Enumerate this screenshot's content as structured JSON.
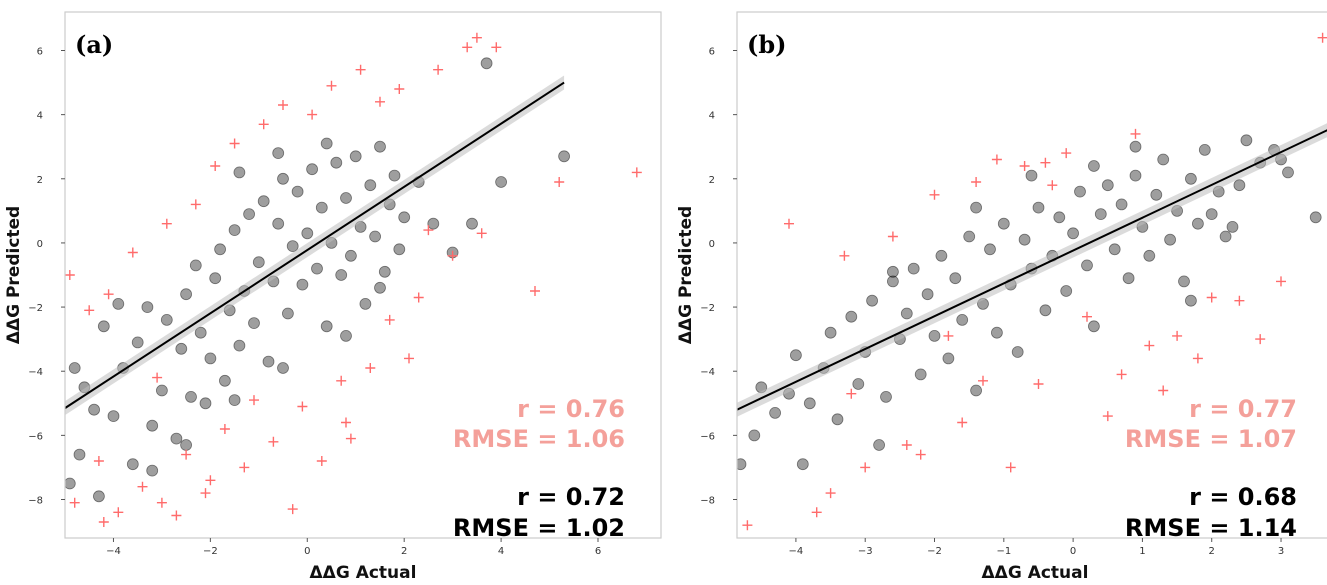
{
  "colors": {
    "black_series": "#000000",
    "red_series": "#ff6b6b",
    "stat_red": "#f4a09a",
    "ci_band": "#bdbdbd"
  },
  "chart_data": [
    {
      "type": "scatter",
      "panel_label": "(a)",
      "xlabel": "ΔΔG Actual",
      "ylabel": "ΔΔG Predicted",
      "xlim": [
        -5,
        7.3
      ],
      "ylim": [
        -9.2,
        7.2
      ],
      "xticks": [
        -4,
        -2,
        0,
        2,
        4,
        6
      ],
      "yticks": [
        -8,
        -6,
        -4,
        -2,
        0,
        2,
        4,
        6
      ],
      "grid": false,
      "fit_line": {
        "x": [
          -5,
          5.3
        ],
        "y": [
          -5.15,
          5.0
        ]
      },
      "stats_red": {
        "r": "r = 0.76",
        "rmse": "RMSE = 1.06"
      },
      "stats_black": {
        "r": "r = 0.72",
        "rmse": "RMSE = 1.02"
      },
      "series": [
        {
          "marker": "circle",
          "points": [
            [
              -4.9,
              -7.5
            ],
            [
              -4.7,
              -6.6
            ],
            [
              -4.6,
              -4.5
            ],
            [
              -4.4,
              -5.2
            ],
            [
              -4.2,
              -2.6
            ],
            [
              -4.0,
              -5.4
            ],
            [
              -3.8,
              -3.9
            ],
            [
              -3.6,
              -6.9
            ],
            [
              -3.5,
              -3.1
            ],
            [
              -3.3,
              -2.0
            ],
            [
              -3.2,
              -5.7
            ],
            [
              -3.0,
              -4.6
            ],
            [
              -2.9,
              -2.4
            ],
            [
              -2.7,
              -6.1
            ],
            [
              -2.6,
              -3.3
            ],
            [
              -2.5,
              -1.6
            ],
            [
              -2.4,
              -4.8
            ],
            [
              -2.3,
              -0.7
            ],
            [
              -2.2,
              -2.8
            ],
            [
              -2.1,
              -5.0
            ],
            [
              -2.0,
              -3.6
            ],
            [
              -1.9,
              -1.1
            ],
            [
              -1.8,
              -0.2
            ],
            [
              -1.7,
              -4.3
            ],
            [
              -1.6,
              -2.1
            ],
            [
              -1.5,
              0.4
            ],
            [
              -1.4,
              -3.2
            ],
            [
              -1.3,
              -1.5
            ],
            [
              -1.2,
              0.9
            ],
            [
              -1.1,
              -2.5
            ],
            [
              -1.0,
              -0.6
            ],
            [
              -0.9,
              1.3
            ],
            [
              -0.8,
              -3.7
            ],
            [
              -0.7,
              -1.2
            ],
            [
              -0.6,
              0.6
            ],
            [
              -0.5,
              2.0
            ],
            [
              -0.4,
              -2.2
            ],
            [
              -0.3,
              -0.1
            ],
            [
              -0.2,
              1.6
            ],
            [
              -0.1,
              -1.3
            ],
            [
              0.0,
              0.3
            ],
            [
              0.1,
              2.3
            ],
            [
              0.2,
              -0.8
            ],
            [
              0.3,
              1.1
            ],
            [
              0.4,
              -2.6
            ],
            [
              0.5,
              0.0
            ],
            [
              0.6,
              2.5
            ],
            [
              0.7,
              -1.0
            ],
            [
              0.8,
              1.4
            ],
            [
              0.9,
              -0.4
            ],
            [
              1.0,
              2.7
            ],
            [
              1.1,
              0.5
            ],
            [
              1.2,
              -1.9
            ],
            [
              1.3,
              1.8
            ],
            [
              1.4,
              0.2
            ],
            [
              1.5,
              3.0
            ],
            [
              1.6,
              -0.9
            ],
            [
              1.7,
              1.2
            ],
            [
              1.8,
              2.1
            ],
            [
              1.9,
              -0.2
            ],
            [
              2.0,
              0.8
            ],
            [
              1.5,
              -1.4
            ],
            [
              0.8,
              -2.9
            ],
            [
              -0.5,
              -3.9
            ],
            [
              -1.5,
              -4.9
            ],
            [
              -2.5,
              -6.3
            ],
            [
              -3.2,
              -7.1
            ],
            [
              -4.3,
              -7.9
            ],
            [
              -4.8,
              -3.9
            ],
            [
              -3.9,
              -1.9
            ],
            [
              -1.4,
              2.2
            ],
            [
              -0.6,
              2.8
            ],
            [
              0.4,
              3.1
            ],
            [
              2.3,
              1.9
            ],
            [
              2.6,
              0.6
            ],
            [
              3.0,
              -0.3
            ],
            [
              3.4,
              0.6
            ],
            [
              4.0,
              1.9
            ],
            [
              3.7,
              5.6
            ],
            [
              5.3,
              2.7
            ]
          ]
        },
        {
          "marker": "plus",
          "points": [
            [
              -4.8,
              -8.1
            ],
            [
              -4.5,
              -2.1
            ],
            [
              -4.3,
              -6.8
            ],
            [
              -4.1,
              -1.6
            ],
            [
              -3.9,
              -8.4
            ],
            [
              -3.6,
              -0.3
            ],
            [
              -3.4,
              -7.6
            ],
            [
              -3.1,
              -4.2
            ],
            [
              -2.9,
              0.6
            ],
            [
              -2.7,
              -8.5
            ],
            [
              -2.5,
              -6.6
            ],
            [
              -2.3,
              1.2
            ],
            [
              -2.1,
              -7.8
            ],
            [
              -1.9,
              2.4
            ],
            [
              -1.7,
              -5.8
            ],
            [
              -1.5,
              3.1
            ],
            [
              -1.3,
              -7.0
            ],
            [
              -1.1,
              -4.9
            ],
            [
              -0.9,
              3.7
            ],
            [
              -0.7,
              -6.2
            ],
            [
              -0.5,
              4.3
            ],
            [
              -0.3,
              -8.3
            ],
            [
              -0.1,
              -5.1
            ],
            [
              0.1,
              4.0
            ],
            [
              0.3,
              -6.8
            ],
            [
              0.5,
              4.9
            ],
            [
              0.7,
              -4.3
            ],
            [
              0.9,
              -6.1
            ],
            [
              1.1,
              5.4
            ],
            [
              1.3,
              -3.9
            ],
            [
              1.5,
              4.4
            ],
            [
              1.7,
              -2.4
            ],
            [
              1.9,
              4.8
            ],
            [
              2.1,
              -3.6
            ],
            [
              2.3,
              -1.7
            ],
            [
              2.5,
              0.4
            ],
            [
              2.7,
              5.4
            ],
            [
              3.0,
              -0.4
            ],
            [
              3.3,
              6.1
            ],
            [
              3.5,
              6.4
            ],
            [
              3.9,
              6.1
            ],
            [
              3.6,
              0.3
            ],
            [
              4.7,
              -1.5
            ],
            [
              5.2,
              1.9
            ],
            [
              6.8,
              2.2
            ],
            [
              -4.9,
              -1.0
            ],
            [
              -4.2,
              -8.7
            ],
            [
              -3.0,
              -8.1
            ],
            [
              -2.0,
              -7.4
            ],
            [
              0.8,
              -5.6
            ]
          ]
        }
      ]
    },
    {
      "type": "scatter",
      "panel_label": "(b)",
      "xlabel": "ΔΔG Actual",
      "ylabel": "ΔΔG Predicted",
      "xlim": [
        -4.85,
        3.75
      ],
      "ylim": [
        -9.2,
        7.2
      ],
      "xticks": [
        -4,
        -3,
        -2,
        -1,
        0,
        1,
        2,
        3
      ],
      "yticks": [
        -8,
        -6,
        -4,
        -2,
        0,
        2,
        4,
        6
      ],
      "grid": false,
      "fit_line": {
        "x": [
          -4.85,
          3.75
        ],
        "y": [
          -5.2,
          3.6
        ]
      },
      "stats_red": {
        "r": "r = 0.77",
        "rmse": "RMSE = 1.07"
      },
      "stats_black": {
        "r": "r = 0.68",
        "rmse": "RMSE = 1.14"
      },
      "series": [
        {
          "marker": "circle",
          "points": [
            [
              -4.8,
              -6.9
            ],
            [
              -4.6,
              -6.0
            ],
            [
              -4.5,
              -4.5
            ],
            [
              -4.3,
              -5.3
            ],
            [
              -4.1,
              -4.7
            ],
            [
              -4.0,
              -3.5
            ],
            [
              -3.9,
              -6.9
            ],
            [
              -3.8,
              -5.0
            ],
            [
              -3.6,
              -3.9
            ],
            [
              -3.5,
              -2.8
            ],
            [
              -3.4,
              -5.5
            ],
            [
              -3.2,
              -2.3
            ],
            [
              -3.1,
              -4.4
            ],
            [
              -3.0,
              -3.4
            ],
            [
              -2.9,
              -1.8
            ],
            [
              -2.8,
              -6.3
            ],
            [
              -2.7,
              -4.8
            ],
            [
              -2.6,
              -1.2
            ],
            [
              -2.5,
              -3.0
            ],
            [
              -2.4,
              -2.2
            ],
            [
              -2.3,
              -0.8
            ],
            [
              -2.2,
              -4.1
            ],
            [
              -2.1,
              -1.6
            ],
            [
              -2.0,
              -2.9
            ],
            [
              -1.9,
              -0.4
            ],
            [
              -1.8,
              -3.6
            ],
            [
              -1.7,
              -1.1
            ],
            [
              -1.6,
              -2.4
            ],
            [
              -1.5,
              0.2
            ],
            [
              -1.4,
              -4.6
            ],
            [
              -1.3,
              -1.9
            ],
            [
              -1.2,
              -0.2
            ],
            [
              -1.1,
              -2.8
            ],
            [
              -1.0,
              0.6
            ],
            [
              -0.9,
              -1.3
            ],
            [
              -0.8,
              -3.4
            ],
            [
              -0.7,
              0.1
            ],
            [
              -0.6,
              -0.8
            ],
            [
              -0.5,
              1.1
            ],
            [
              -0.4,
              -2.1
            ],
            [
              -0.3,
              -0.4
            ],
            [
              -0.2,
              0.8
            ],
            [
              -0.1,
              -1.5
            ],
            [
              0.0,
              0.3
            ],
            [
              0.1,
              1.6
            ],
            [
              0.2,
              -0.7
            ],
            [
              0.3,
              -2.6
            ],
            [
              0.4,
              0.9
            ],
            [
              0.5,
              1.8
            ],
            [
              0.6,
              -0.2
            ],
            [
              0.7,
              1.2
            ],
            [
              0.8,
              -1.1
            ],
            [
              0.9,
              2.1
            ],
            [
              1.0,
              0.5
            ],
            [
              1.1,
              -0.4
            ],
            [
              1.2,
              1.5
            ],
            [
              1.3,
              2.6
            ],
            [
              1.4,
              0.1
            ],
            [
              1.5,
              1.0
            ],
            [
              1.6,
              -1.2
            ],
            [
              1.7,
              2.0
            ],
            [
              1.8,
              0.6
            ],
            [
              1.9,
              2.9
            ],
            [
              2.0,
              0.9
            ],
            [
              2.1,
              1.6
            ],
            [
              2.2,
              0.2
            ],
            [
              2.4,
              1.8
            ],
            [
              2.5,
              3.2
            ],
            [
              2.7,
              2.5
            ],
            [
              2.9,
              2.9
            ],
            [
              3.0,
              2.6
            ],
            [
              3.1,
              2.2
            ],
            [
              3.5,
              0.8
            ],
            [
              -0.6,
              2.1
            ],
            [
              0.9,
              3.0
            ],
            [
              1.7,
              -1.8
            ],
            [
              2.3,
              0.5
            ],
            [
              -1.4,
              1.1
            ],
            [
              0.3,
              2.4
            ],
            [
              -2.6,
              -0.9
            ]
          ]
        },
        {
          "marker": "plus",
          "points": [
            [
              -4.7,
              -8.8
            ],
            [
              -4.1,
              0.6
            ],
            [
              -3.7,
              -8.4
            ],
            [
              -3.5,
              -7.8
            ],
            [
              -3.3,
              -0.4
            ],
            [
              -3.0,
              -7.0
            ],
            [
              -2.6,
              0.2
            ],
            [
              -2.4,
              -6.3
            ],
            [
              -2.2,
              -6.6
            ],
            [
              -2.0,
              1.5
            ],
            [
              -1.6,
              -5.6
            ],
            [
              -1.4,
              1.9
            ],
            [
              -1.3,
              -4.3
            ],
            [
              -1.1,
              2.6
            ],
            [
              -0.9,
              -7.0
            ],
            [
              -0.7,
              2.4
            ],
            [
              -0.5,
              -4.4
            ],
            [
              -0.3,
              1.8
            ],
            [
              -0.1,
              2.8
            ],
            [
              0.5,
              -5.4
            ],
            [
              0.7,
              -4.1
            ],
            [
              0.9,
              3.4
            ],
            [
              1.1,
              -3.2
            ],
            [
              1.5,
              -2.9
            ],
            [
              1.8,
              -3.6
            ],
            [
              2.0,
              -1.7
            ],
            [
              2.4,
              -1.8
            ],
            [
              2.7,
              -3.0
            ],
            [
              3.0,
              -1.2
            ],
            [
              3.6,
              6.4
            ],
            [
              -1.8,
              -2.9
            ],
            [
              0.2,
              -2.3
            ],
            [
              -3.2,
              -4.7
            ],
            [
              1.3,
              -4.6
            ],
            [
              -0.4,
              2.5
            ]
          ]
        }
      ]
    }
  ]
}
